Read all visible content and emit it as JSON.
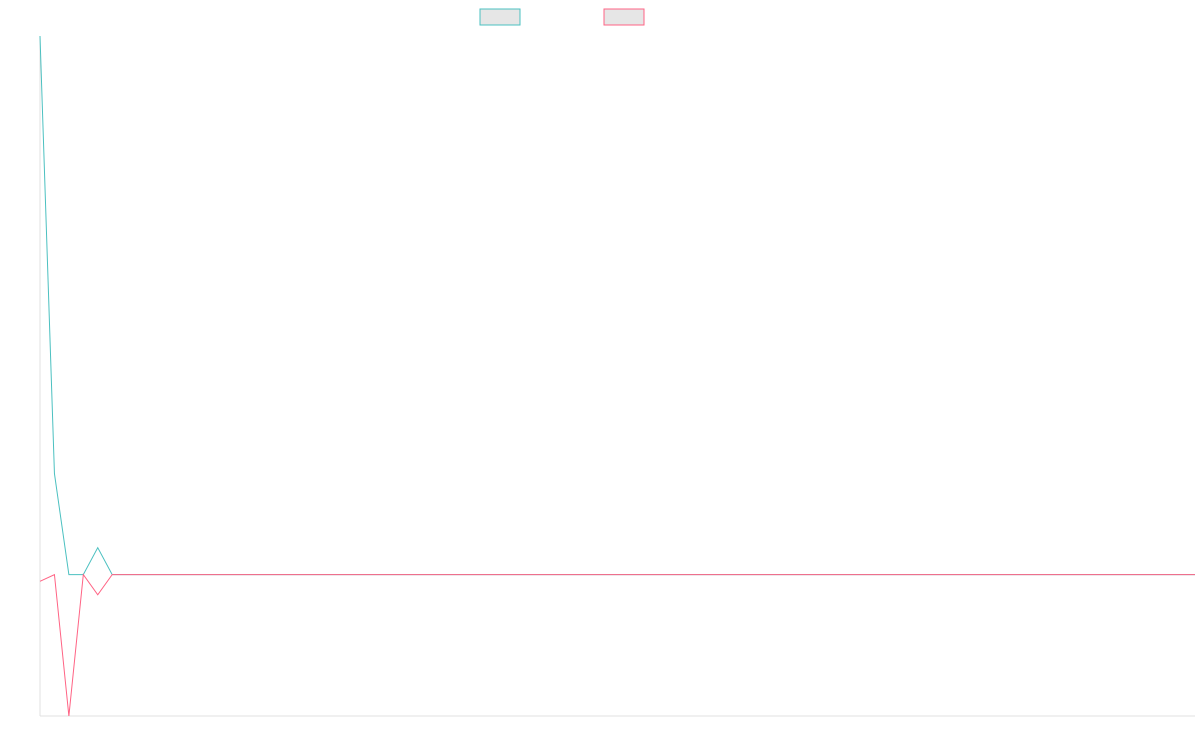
{
  "chart_data": {
    "type": "line",
    "title": "",
    "xlabel": "",
    "ylabel": "",
    "grid": false,
    "legend_placement": "top-center",
    "ylim": [
      -420,
      1600
    ],
    "x": [
      0,
      1,
      2,
      3,
      4,
      5,
      6,
      7,
      8,
      9,
      10,
      11,
      12,
      13,
      14,
      15,
      16,
      17,
      18,
      19,
      20,
      21,
      22,
      23,
      24,
      25,
      26,
      27,
      28,
      29,
      30,
      31,
      32,
      33,
      34,
      35,
      36,
      37,
      38,
      39,
      40,
      41,
      42,
      43,
      44,
      45,
      46,
      47,
      48,
      49,
      50,
      51,
      52,
      53,
      54,
      55,
      56,
      57,
      58,
      59,
      60,
      61,
      62,
      63,
      64,
      65,
      66,
      67,
      68,
      69,
      70,
      71,
      72,
      73,
      74,
      75,
      76,
      77,
      78,
      79,
      80
    ],
    "series": [
      {
        "name": "",
        "color": "#4bc0c0",
        "fill": "#e6e6e6",
        "values": [
          1600,
          300,
          0,
          0,
          80,
          0,
          0,
          0,
          0,
          0,
          0,
          0,
          0,
          0,
          0,
          0,
          0,
          0,
          0,
          0,
          0,
          0,
          0,
          0,
          0,
          0,
          0,
          0,
          0,
          0,
          0,
          0,
          0,
          0,
          0,
          0,
          0,
          0,
          0,
          0,
          0,
          0,
          0,
          0,
          0,
          0,
          0,
          0,
          0,
          0,
          0,
          0,
          0,
          0,
          0,
          0,
          0,
          0,
          0,
          0,
          0,
          0,
          0,
          0,
          0,
          0,
          0,
          0,
          0,
          0,
          0,
          0,
          0,
          0,
          0,
          0,
          0,
          0,
          0,
          0,
          0
        ]
      },
      {
        "name": "",
        "color": "#ff6384",
        "fill": "#e6e6e6",
        "values": [
          -20,
          0,
          -420,
          0,
          -60,
          0,
          0,
          0,
          0,
          0,
          0,
          0,
          0,
          0,
          0,
          0,
          0,
          0,
          0,
          0,
          0,
          0,
          0,
          0,
          0,
          0,
          0,
          0,
          0,
          0,
          0,
          0,
          0,
          0,
          0,
          0,
          0,
          0,
          0,
          0,
          0,
          0,
          0,
          0,
          0,
          0,
          0,
          0,
          0,
          0,
          0,
          0,
          0,
          0,
          0,
          0,
          0,
          0,
          0,
          0,
          0,
          0,
          0,
          0,
          0,
          0,
          0,
          0,
          0,
          0,
          0,
          0,
          0,
          0,
          0,
          0,
          0,
          0,
          0,
          0,
          0
        ]
      }
    ]
  }
}
